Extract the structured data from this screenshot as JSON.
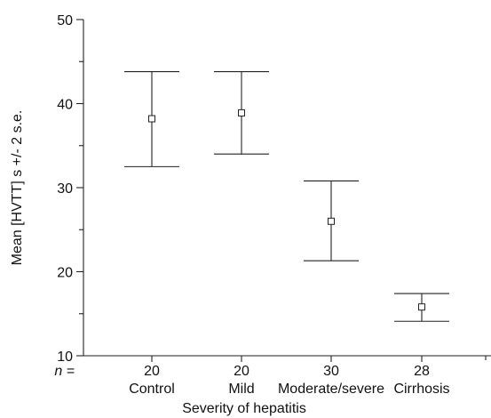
{
  "chart_data": {
    "type": "errorbar",
    "title": "",
    "xlabel": "Severity of hepatitis",
    "ylabel": "Mean [HVTT] s +/- 2 s.e.",
    "ylim": [
      10,
      50
    ],
    "yticks_major": [
      10,
      20,
      30,
      40,
      50
    ],
    "yticks_minor": [
      15,
      25,
      35,
      45
    ],
    "n_label": "n =",
    "grid": false,
    "legend": "none",
    "categories": [
      "Control",
      "Mild",
      "Moderate/severe",
      "Cirrhosis"
    ],
    "n": [
      "20",
      "20",
      "30",
      "28"
    ],
    "series": [
      {
        "mean": [
          38.2,
          38.9,
          26.0,
          15.8
        ],
        "lower": [
          32.5,
          34.0,
          21.3,
          14.1
        ],
        "upper": [
          43.8,
          43.8,
          30.8,
          17.4
        ]
      }
    ]
  }
}
